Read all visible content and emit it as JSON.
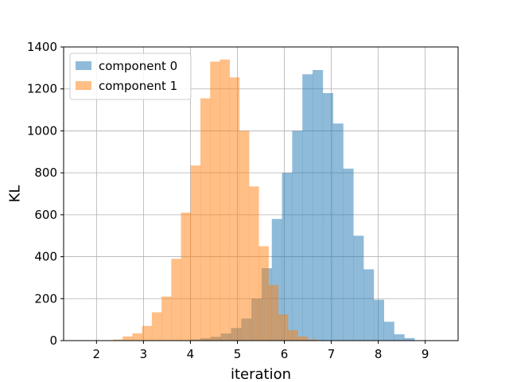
{
  "chart_data": {
    "type": "bar",
    "subtype": "histogram-overlay",
    "xlabel": "iteration",
    "ylabel": "KL",
    "xlim": [
      1.3,
      9.7
    ],
    "ylim": [
      0,
      1400
    ],
    "x_ticks": [
      "2",
      "3",
      "4",
      "5",
      "6",
      "7",
      "8",
      "9"
    ],
    "y_ticks": [
      "0",
      "200",
      "400",
      "600",
      "800",
      "1000",
      "1200",
      "1400"
    ],
    "grid": true,
    "legend_position": "top-left",
    "series": [
      {
        "name": "component 0",
        "color": "#1f77b4",
        "alpha": 0.5,
        "bin_start": 3.78,
        "bin_width": 0.217,
        "values": [
          2,
          5,
          11,
          18,
          34,
          60,
          105,
          200,
          345,
          580,
          800,
          1000,
          1270,
          1290,
          1180,
          1035,
          820,
          500,
          340,
          195,
          90,
          30,
          12
        ]
      },
      {
        "name": "component 1",
        "color": "#ff7f0e",
        "alpha": 0.5,
        "bin_start": 2.35,
        "bin_width": 0.207,
        "values": [
          5,
          20,
          35,
          70,
          135,
          210,
          390,
          610,
          835,
          1155,
          1330,
          1340,
          1255,
          1000,
          735,
          450,
          265,
          125,
          50,
          20,
          6,
          2
        ]
      }
    ]
  }
}
